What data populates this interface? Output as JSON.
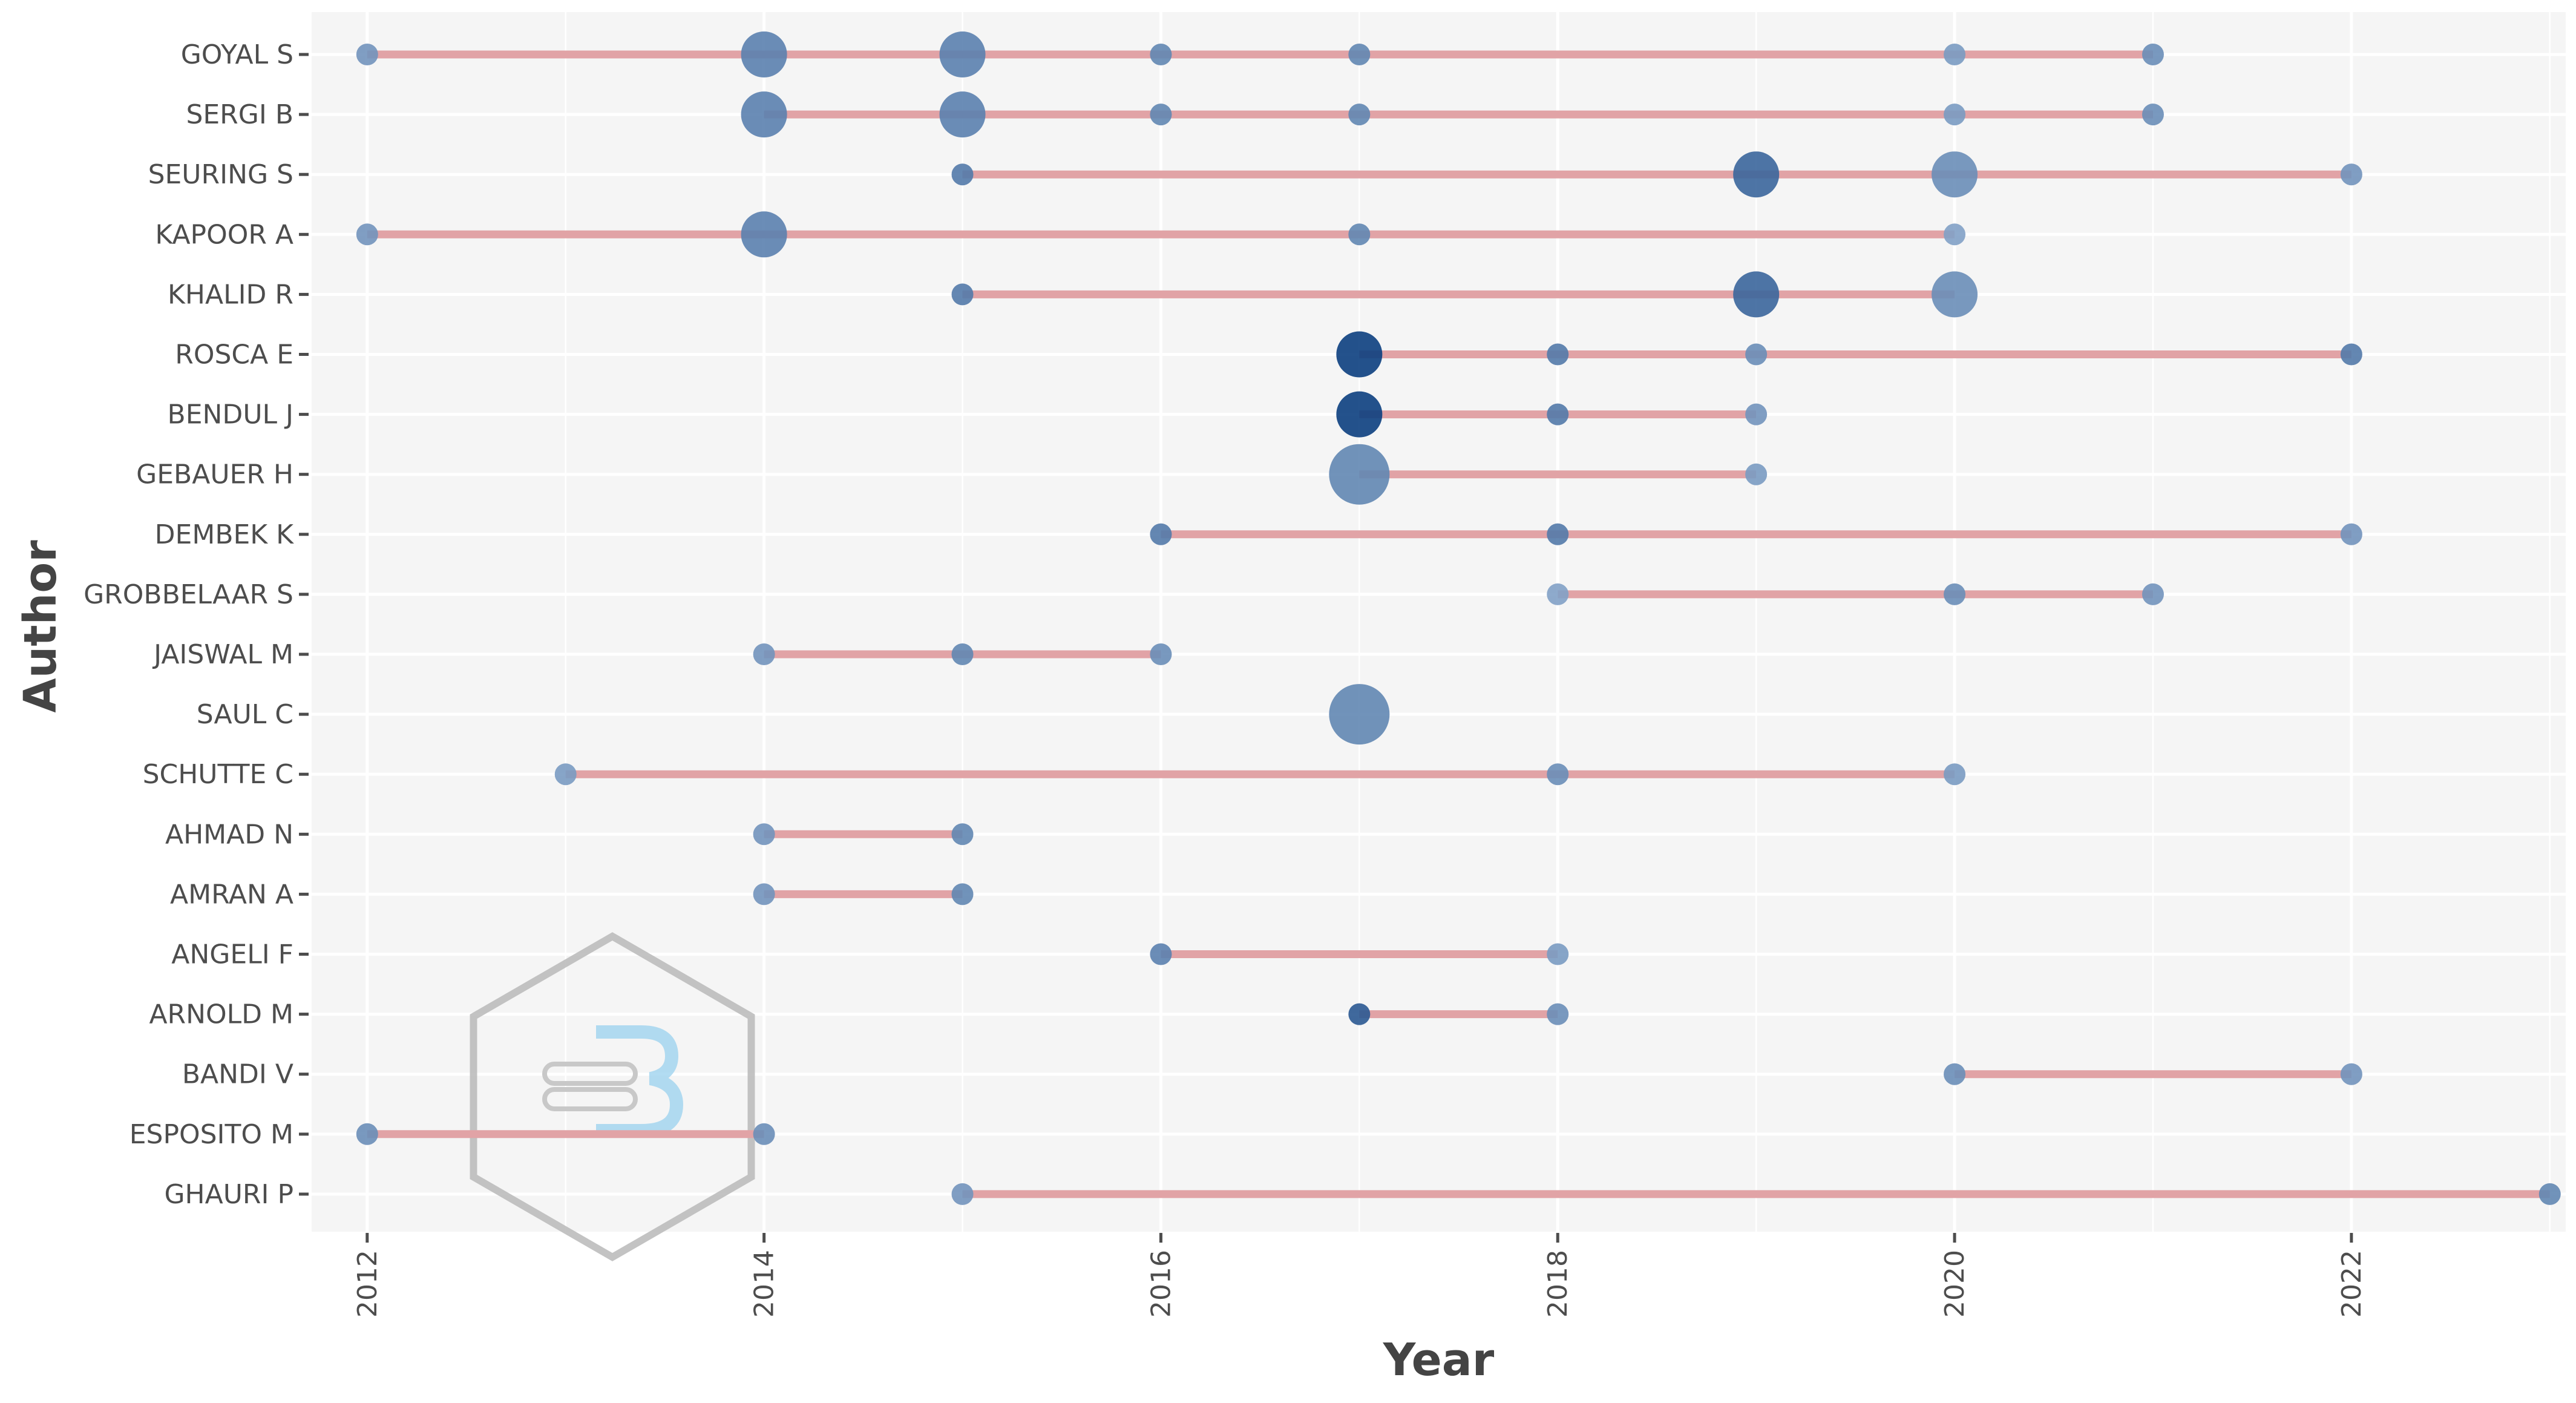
{
  "chart_data": {
    "type": "scatter",
    "title": "",
    "xlabel": "Year",
    "ylabel": "Author",
    "xlim": [
      2011.72,
      2023.08
    ],
    "x_ticks": [
      2012,
      2014,
      2016,
      2018,
      2020,
      2022
    ],
    "x_tick_labels": [
      "2012",
      "2014",
      "2016",
      "2018",
      "2020",
      "2022"
    ],
    "grid": true,
    "colors": {
      "panel_background": "#f5f5f5",
      "grid": "#ffffff",
      "segment": "#e1a3a6",
      "point_light": "#a9c2de",
      "point_dark": "#0c3f7f",
      "tick_text": "#4d4d4d",
      "axis_title": "#444444"
    },
    "authors": [
      {
        "name": "GOYAL S",
        "points": [
          {
            "year": 2012,
            "size": 1,
            "intensity": 0.35
          },
          {
            "year": 2014,
            "size": 3,
            "intensity": 0.5
          },
          {
            "year": 2015,
            "size": 3,
            "intensity": 0.5
          },
          {
            "year": 2016,
            "size": 1,
            "intensity": 0.45
          },
          {
            "year": 2017,
            "size": 1,
            "intensity": 0.45
          },
          {
            "year": 2020,
            "size": 1,
            "intensity": 0.3
          },
          {
            "year": 2021,
            "size": 1,
            "intensity": 0.4
          }
        ]
      },
      {
        "name": "SERGI B",
        "points": [
          {
            "year": 2014,
            "size": 3,
            "intensity": 0.5
          },
          {
            "year": 2015,
            "size": 3,
            "intensity": 0.5
          },
          {
            "year": 2016,
            "size": 1,
            "intensity": 0.45
          },
          {
            "year": 2017,
            "size": 1,
            "intensity": 0.45
          },
          {
            "year": 2020,
            "size": 1,
            "intensity": 0.3
          },
          {
            "year": 2021,
            "size": 1,
            "intensity": 0.4
          }
        ]
      },
      {
        "name": "SEURING S",
        "points": [
          {
            "year": 2015,
            "size": 1,
            "intensity": 0.55
          },
          {
            "year": 2019,
            "size": 3,
            "intensity": 0.7
          },
          {
            "year": 2020,
            "size": 3,
            "intensity": 0.4
          },
          {
            "year": 2022,
            "size": 1,
            "intensity": 0.35
          }
        ]
      },
      {
        "name": "KAPOOR A",
        "points": [
          {
            "year": 2012,
            "size": 1,
            "intensity": 0.35
          },
          {
            "year": 2014,
            "size": 3,
            "intensity": 0.5
          },
          {
            "year": 2017,
            "size": 1,
            "intensity": 0.45
          },
          {
            "year": 2020,
            "size": 1,
            "intensity": 0.25
          }
        ]
      },
      {
        "name": "KHALID R",
        "points": [
          {
            "year": 2015,
            "size": 1,
            "intensity": 0.55
          },
          {
            "year": 2019,
            "size": 3,
            "intensity": 0.7
          },
          {
            "year": 2020,
            "size": 3,
            "intensity": 0.4
          }
        ]
      },
      {
        "name": "ROSCA E",
        "points": [
          {
            "year": 2017,
            "size": 3,
            "intensity": 1.0
          },
          {
            "year": 2018,
            "size": 1,
            "intensity": 0.55
          },
          {
            "year": 2019,
            "size": 1,
            "intensity": 0.4
          },
          {
            "year": 2022,
            "size": 1,
            "intensity": 0.55
          }
        ]
      },
      {
        "name": "BENDUL J",
        "points": [
          {
            "year": 2017,
            "size": 3,
            "intensity": 1.0
          },
          {
            "year": 2018,
            "size": 1,
            "intensity": 0.55
          },
          {
            "year": 2019,
            "size": 1,
            "intensity": 0.35
          }
        ]
      },
      {
        "name": "GEBAUER H",
        "points": [
          {
            "year": 2017,
            "size": 4,
            "intensity": 0.45
          },
          {
            "year": 2019,
            "size": 1,
            "intensity": 0.3
          }
        ]
      },
      {
        "name": "DEMBEK K",
        "points": [
          {
            "year": 2016,
            "size": 1,
            "intensity": 0.55
          },
          {
            "year": 2018,
            "size": 1,
            "intensity": 0.55
          },
          {
            "year": 2022,
            "size": 1,
            "intensity": 0.35
          }
        ]
      },
      {
        "name": "GROBBELAAR S",
        "points": [
          {
            "year": 2018,
            "size": 1,
            "intensity": 0.25
          },
          {
            "year": 2020,
            "size": 1,
            "intensity": 0.4
          },
          {
            "year": 2021,
            "size": 1,
            "intensity": 0.35
          }
        ]
      },
      {
        "name": "JAISWAL M",
        "points": [
          {
            "year": 2014,
            "size": 1,
            "intensity": 0.35
          },
          {
            "year": 2015,
            "size": 1,
            "intensity": 0.45
          },
          {
            "year": 2016,
            "size": 1,
            "intensity": 0.4
          }
        ]
      },
      {
        "name": "SAUL C",
        "points": [
          {
            "year": 2017,
            "size": 4,
            "intensity": 0.45
          }
        ]
      },
      {
        "name": "SCHUTTE C",
        "points": [
          {
            "year": 2013,
            "size": 1,
            "intensity": 0.3
          },
          {
            "year": 2018,
            "size": 1,
            "intensity": 0.4
          },
          {
            "year": 2020,
            "size": 1,
            "intensity": 0.3
          }
        ]
      },
      {
        "name": "AHMAD N",
        "points": [
          {
            "year": 2014,
            "size": 1,
            "intensity": 0.35
          },
          {
            "year": 2015,
            "size": 1,
            "intensity": 0.45
          }
        ]
      },
      {
        "name": "AMRAN A",
        "points": [
          {
            "year": 2014,
            "size": 1,
            "intensity": 0.35
          },
          {
            "year": 2015,
            "size": 1,
            "intensity": 0.45
          }
        ]
      },
      {
        "name": "ANGELI F",
        "points": [
          {
            "year": 2016,
            "size": 1,
            "intensity": 0.5
          },
          {
            "year": 2018,
            "size": 1,
            "intensity": 0.3
          }
        ]
      },
      {
        "name": "ARNOLD M",
        "points": [
          {
            "year": 2017,
            "size": 1,
            "intensity": 0.8
          },
          {
            "year": 2018,
            "size": 1,
            "intensity": 0.4
          }
        ]
      },
      {
        "name": "BANDI V",
        "points": [
          {
            "year": 2020,
            "size": 1,
            "intensity": 0.4
          },
          {
            "year": 2022,
            "size": 1,
            "intensity": 0.35
          }
        ]
      },
      {
        "name": "ESPOSITO M",
        "points": [
          {
            "year": 2012,
            "size": 1,
            "intensity": 0.4
          },
          {
            "year": 2014,
            "size": 1,
            "intensity": 0.4
          }
        ]
      },
      {
        "name": "GHAURI P",
        "points": [
          {
            "year": 2015,
            "size": 1,
            "intensity": 0.35
          },
          {
            "year": 2023,
            "size": 1,
            "intensity": 0.45
          }
        ]
      }
    ]
  }
}
